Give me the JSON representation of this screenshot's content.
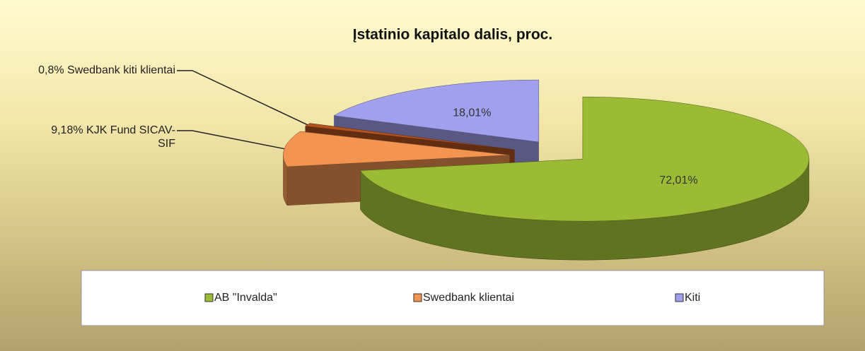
{
  "chart_data": {
    "type": "pie3d",
    "title": "Įstatinio kapitalo dalis, proc.",
    "values": [
      72.01,
      9.18,
      0.8,
      18.01
    ],
    "value_labels": [
      "72,01%",
      "9,18% KJK Fund SICAV-SIF",
      "0,8% Swedbank kiti klientai",
      "18,01%"
    ],
    "colors": [
      "#9bbb34",
      "#f39450",
      "#b5531f",
      "#a0a0ee"
    ],
    "legend": [
      {
        "name": "AB \"Invalda\"",
        "color": "#9bbb34"
      },
      {
        "name": "Swedbank klientai",
        "color": "#f39450"
      },
      {
        "name": "Kiti",
        "color": "#a0a0ee"
      }
    ]
  }
}
